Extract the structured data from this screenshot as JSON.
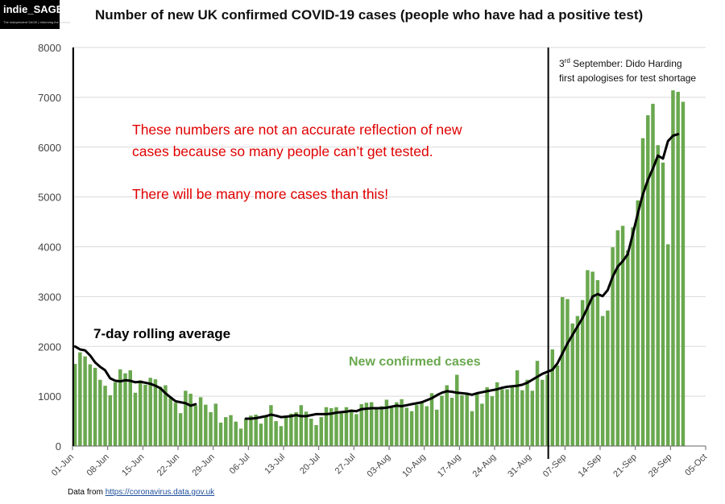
{
  "logo": {
    "name": "indie_SAGE",
    "tagline": "The independent SAGE | Informing the science"
  },
  "header": {
    "title": "Number of new UK confirmed COVID-19 cases (people who have had a positive test)"
  },
  "footer": {
    "prefix": "Data from ",
    "link": "https://coronavirus.data.gov.uk"
  },
  "annotations": {
    "warning_line1": "These numbers are not an accurate reflection of new",
    "warning_line2": "cases because so many people can’t get tested.",
    "warning_line3": "There will be many more cases than this!",
    "event_pre": "3",
    "event_sup": "rd",
    "event_line1_rest": " September:  Dido Harding",
    "event_line2": "first apologises for test shortage",
    "event_date_index": 95,
    "rolling_label": "7-day rolling average",
    "bars_label": "New confirmed cases"
  },
  "colors": {
    "bars": "#6aa84f",
    "rolling": "#000000",
    "warning": "#e00000",
    "bars_label": "#6aa84f"
  },
  "chart_data": {
    "type": "bar",
    "ylim": [
      0,
      8000
    ],
    "yticks": [
      0,
      1000,
      2000,
      3000,
      4000,
      5000,
      6000,
      7000,
      8000
    ],
    "xlim": [
      0,
      126
    ],
    "xtick_labels": [
      "01-Jun",
      "08-Jun",
      "15-Jun",
      "22-Jun",
      "29-Jun",
      "06-Jul",
      "13-Jul",
      "20-Jul",
      "27-Jul",
      "03-Aug",
      "10-Aug",
      "17-Aug",
      "24-Aug",
      "31-Aug",
      "07-Sep",
      "14-Sep",
      "21-Sep",
      "28-Sep",
      "05-Oct"
    ],
    "xtick_step": 7,
    "series": [
      {
        "name": "New confirmed cases",
        "values": [
          1650,
          1880,
          1800,
          1640,
          1570,
          1330,
          1210,
          1020,
          1280,
          1540,
          1460,
          1520,
          1070,
          1320,
          1230,
          1370,
          1340,
          1190,
          1220,
          960,
          870,
          660,
          1110,
          1050,
          820,
          980,
          830,
          680,
          850,
          470,
          580,
          620,
          490,
          350,
          550,
          610,
          630,
          450,
          590,
          820,
          500,
          400,
          590,
          650,
          680,
          820,
          690,
          550,
          420,
          580,
          780,
          760,
          780,
          700,
          780,
          730,
          640,
          840,
          870,
          880,
          740,
          800,
          930,
          770,
          880,
          940,
          770,
          700,
          830,
          880,
          800,
          1060,
          730,
          1010,
          1220,
          970,
          1430,
          1020,
          1050,
          700,
          1060,
          850,
          1180,
          1000,
          1280,
          1140,
          1140,
          1180,
          1520,
          1120,
          1330,
          1110,
          1710,
          1330,
          1430,
          1940,
          1620,
          2990,
          2950,
          2460,
          2610,
          2930,
          3530,
          3500,
          3330,
          2610,
          2720,
          3990,
          4330,
          4420,
          3930,
          4390,
          4930,
          6180,
          6640,
          6870,
          6040,
          5690,
          4050,
          7140,
          7110,
          6910
        ],
        "start_index": 0
      },
      {
        "name": "7-day rolling average",
        "values": [
          2000,
          1940,
          1920,
          1820,
          1680,
          1590,
          1520,
          1360,
          1310,
          1300,
          1320,
          1310,
          1280,
          1290,
          1270,
          1250,
          1210,
          1160,
          1060,
          980,
          900,
          880,
          860,
          810,
          840
        ],
        "start_index": 0
      },
      {
        "name": "7-day rolling average (continued)",
        "values": [
          550,
          550,
          560,
          580,
          600,
          630,
          610,
          580,
          590,
          600,
          620,
          600,
          600,
          620,
          640,
          640,
          640,
          650,
          670,
          680,
          690,
          710,
          700,
          740,
          750,
          760,
          760,
          760,
          770,
          790,
          810,
          800,
          820,
          840,
          860,
          880,
          920,
          960,
          1020,
          1070,
          1100,
          1090,
          1070,
          1060,
          1050,
          1030,
          1060,
          1080,
          1100,
          1120,
          1140,
          1170,
          1190,
          1200,
          1210,
          1230,
          1270,
          1330,
          1390,
          1450,
          1490,
          1530,
          1660,
          1860,
          2060,
          2230,
          2400,
          2570,
          2780,
          3000,
          3050,
          3010,
          3130,
          3400,
          3600,
          3710,
          3850,
          4250,
          4670,
          5050,
          5340,
          5570,
          5830,
          5770,
          6120,
          6230,
          6260
        ],
        "start_index": 34
      }
    ]
  }
}
